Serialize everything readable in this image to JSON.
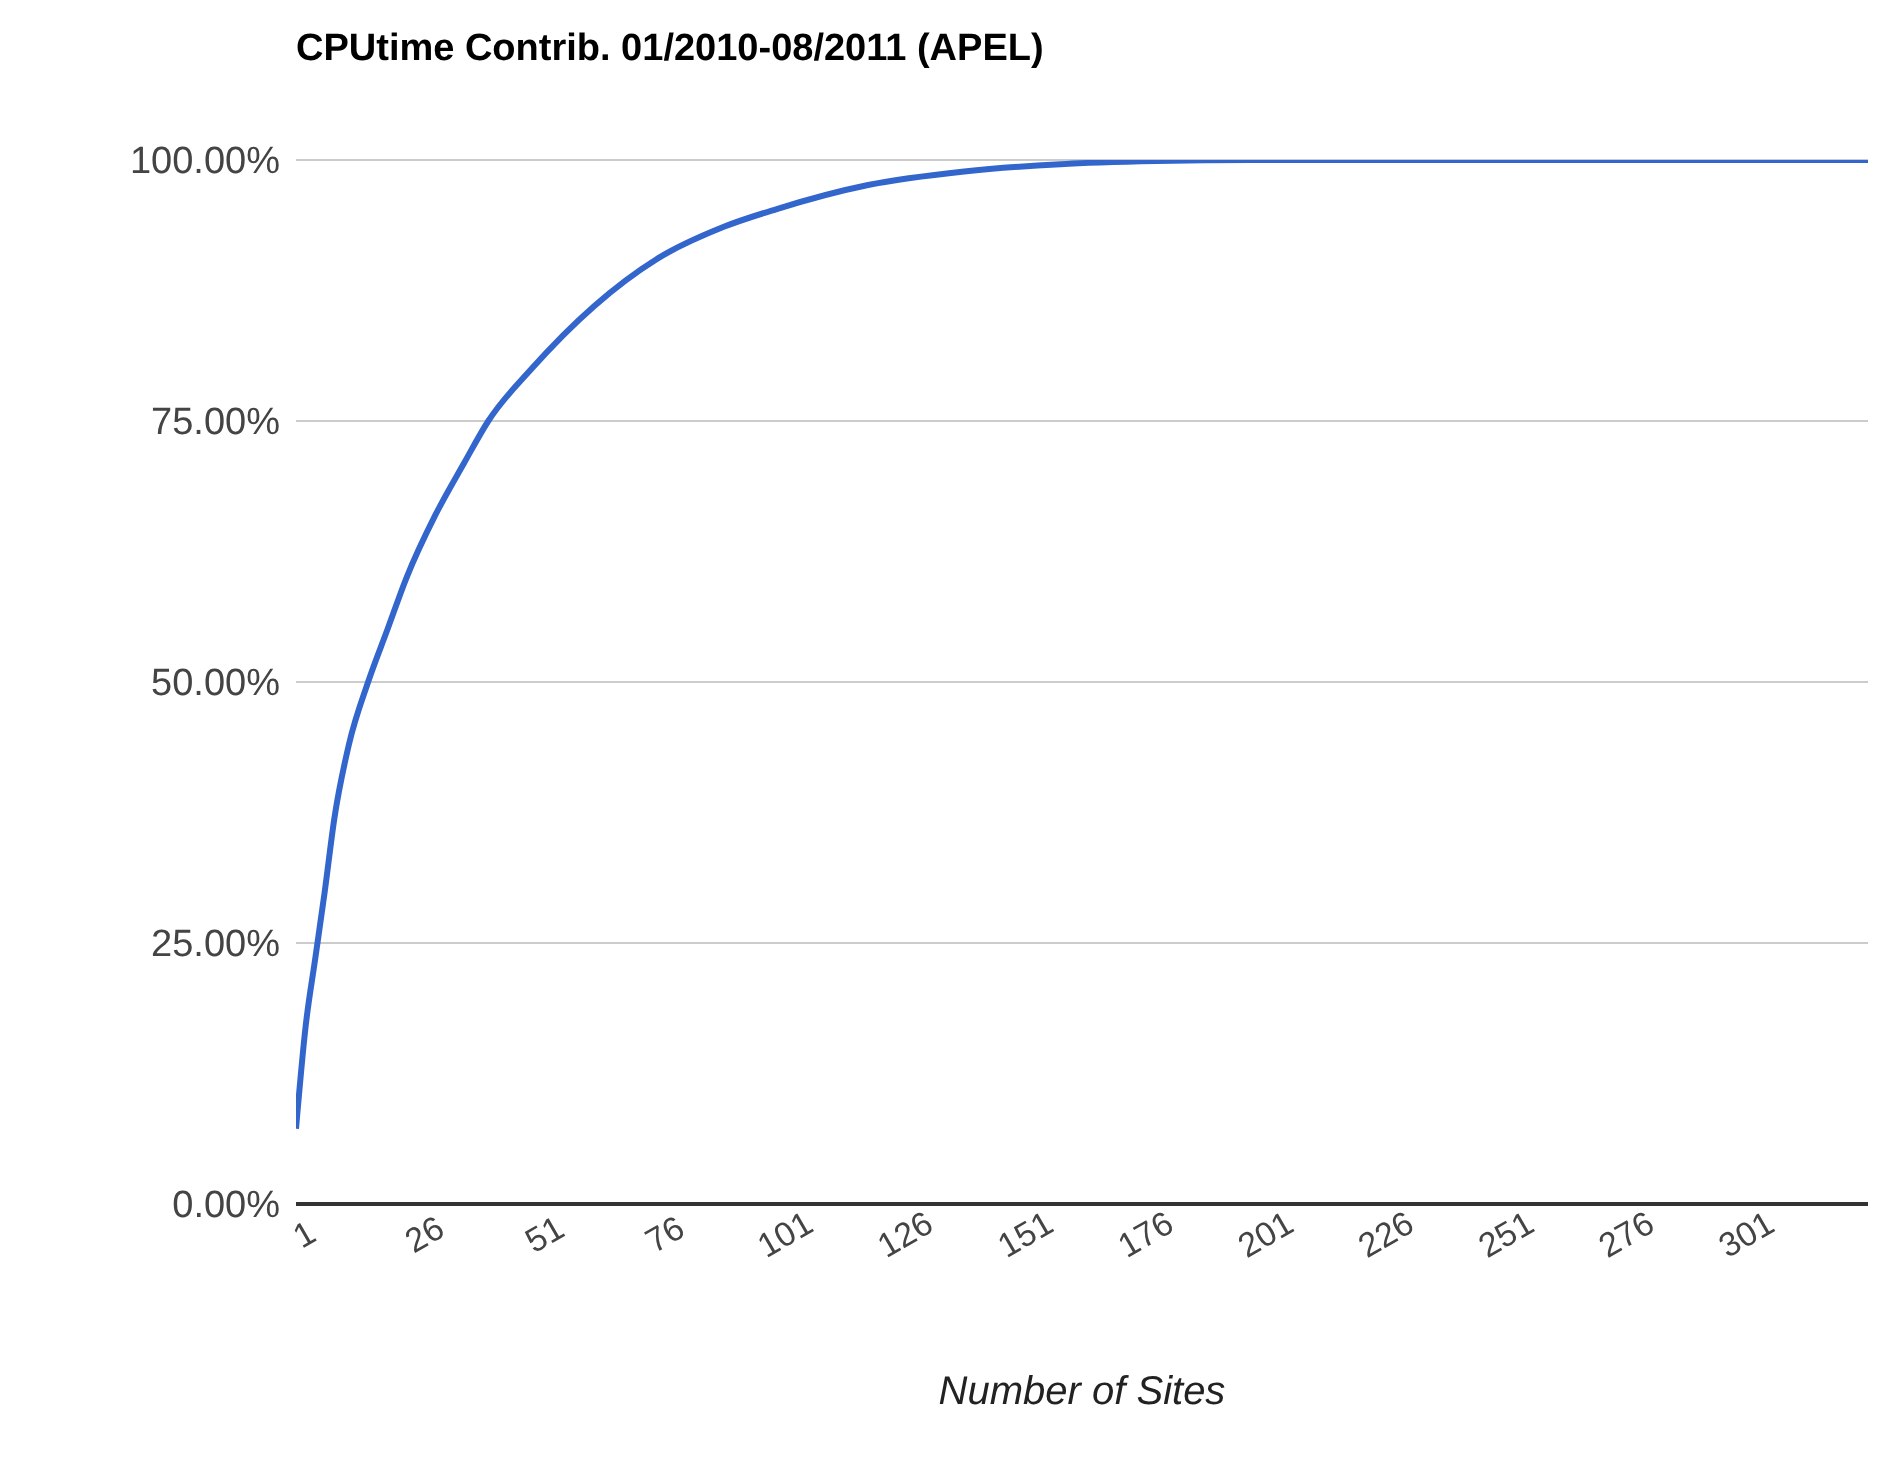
{
  "chart_data": {
    "type": "line",
    "title": "CPUtime Contrib. 01/2010-08/2011 (APEL)",
    "xlabel": "Number of Sites",
    "x": [
      1,
      3,
      5,
      7,
      9,
      12,
      16,
      20,
      24,
      30,
      36,
      41,
      50,
      63,
      76,
      90,
      101,
      120,
      140,
      160,
      180,
      200,
      240,
      280,
      328
    ],
    "series": [
      {
        "color": "#3366cc",
        "values": [
          7.2,
          17,
          23.5,
          30,
          37,
          44,
          50,
          55,
          60,
          66,
          71,
          75,
          80,
          86,
          90.5,
          93.6,
          95.3,
          97.6,
          98.9,
          99.6,
          99.9,
          100,
          100,
          100,
          100
        ]
      }
    ],
    "xlim": [
      1,
      328
    ],
    "xticks": [
      1,
      26,
      51,
      76,
      101,
      126,
      151,
      176,
      201,
      226,
      251,
      276,
      301
    ],
    "ylim": [
      0,
      100
    ],
    "yticks": [
      {
        "value": 0,
        "label": "0.00%"
      },
      {
        "value": 25,
        "label": "25.00%"
      },
      {
        "value": 50,
        "label": "50.00%"
      },
      {
        "value": 75,
        "label": "75.00%"
      },
      {
        "value": 100,
        "label": "100.00%"
      }
    ],
    "grid": "y",
    "legend": false,
    "marker": "none",
    "line_style": "solid"
  }
}
